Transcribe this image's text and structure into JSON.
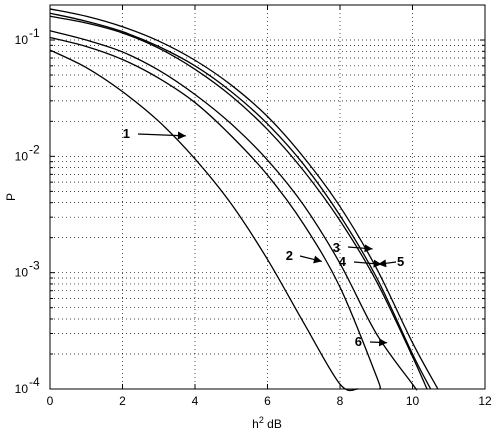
{
  "chart_data": {
    "type": "line",
    "title": "",
    "xlabel": "h",
    "xlabel_sup": "2",
    "xlabel_unit": " dB",
    "ylabel": "P",
    "xlim": [
      0,
      12
    ],
    "ylim": [
      0.0001,
      0.2
    ],
    "yscale": "log",
    "grid": true,
    "x_ticks": [
      0,
      2,
      4,
      6,
      8,
      10,
      12
    ],
    "x_tick_labels": [
      "0",
      "2",
      "4",
      "6",
      "8",
      "10",
      "12"
    ],
    "y_ticks": [
      0.1,
      0.01,
      0.001,
      0.0001
    ],
    "y_tick_labels": [
      {
        "base": "10",
        "exp": "-1"
      },
      {
        "base": "10",
        "exp": "-2"
      },
      {
        "base": "10",
        "exp": "-3"
      },
      {
        "base": "10",
        "exp": "-4"
      }
    ],
    "series": [
      {
        "label": "1",
        "x": [
          0,
          1,
          2,
          3,
          4,
          5,
          6,
          7,
          8,
          8.5
        ],
        "y": [
          0.082,
          0.058,
          0.036,
          0.02,
          0.0095,
          0.0039,
          0.0013,
          0.00037,
          0.00011,
          0.0001
        ]
      },
      {
        "label": "2",
        "x": [
          0,
          1,
          2,
          3,
          4,
          5,
          6,
          7,
          8,
          9,
          9.1
        ],
        "y": [
          0.105,
          0.088,
          0.068,
          0.047,
          0.029,
          0.015,
          0.0069,
          0.0026,
          0.00075,
          0.00013,
          0.0001
        ]
      },
      {
        "label": "3",
        "x": [
          0,
          1,
          2,
          3,
          4,
          5,
          6,
          7,
          8,
          9,
          10,
          10.4
        ],
        "y": [
          0.16,
          0.14,
          0.115,
          0.085,
          0.056,
          0.033,
          0.017,
          0.0075,
          0.0028,
          0.00085,
          0.00019,
          0.0001
        ]
      },
      {
        "label": "4",
        "x": [
          0,
          1,
          2,
          3,
          4,
          5,
          6,
          7,
          8,
          9,
          10,
          10.5
        ],
        "y": [
          0.17,
          0.145,
          0.118,
          0.088,
          0.06,
          0.036,
          0.019,
          0.0085,
          0.0031,
          0.00092,
          0.0002,
          0.0001
        ]
      },
      {
        "label": "5",
        "x": [
          0,
          1,
          2,
          3,
          4,
          5,
          6,
          7,
          8,
          9,
          10,
          10.7
        ],
        "y": [
          0.185,
          0.16,
          0.13,
          0.098,
          0.067,
          0.041,
          0.022,
          0.0098,
          0.0037,
          0.0011,
          0.00025,
          0.0001
        ]
      },
      {
        "label": "6",
        "x": [
          0,
          1,
          2,
          3,
          4,
          5,
          6,
          7,
          8,
          9,
          10,
          10.1
        ],
        "y": [
          0.12,
          0.1,
          0.079,
          0.055,
          0.034,
          0.019,
          0.0093,
          0.0038,
          0.0012,
          0.0003,
          0.00011,
          0.0001
        ]
      }
    ],
    "annotations": [
      {
        "text": "1",
        "point_to": [
          3.75,
          0.015
        ]
      },
      {
        "text": "2",
        "point_to": [
          7.5,
          0.00125
        ]
      },
      {
        "text": "3",
        "point_to": [
          8.9,
          0.0016
        ]
      },
      {
        "text": "4",
        "point_to": [
          9.15,
          0.00118
        ]
      },
      {
        "text": "5",
        "point_to": [
          9.05,
          0.00118
        ]
      },
      {
        "text": "6",
        "point_to": [
          9.3,
          0.00025
        ]
      }
    ]
  }
}
